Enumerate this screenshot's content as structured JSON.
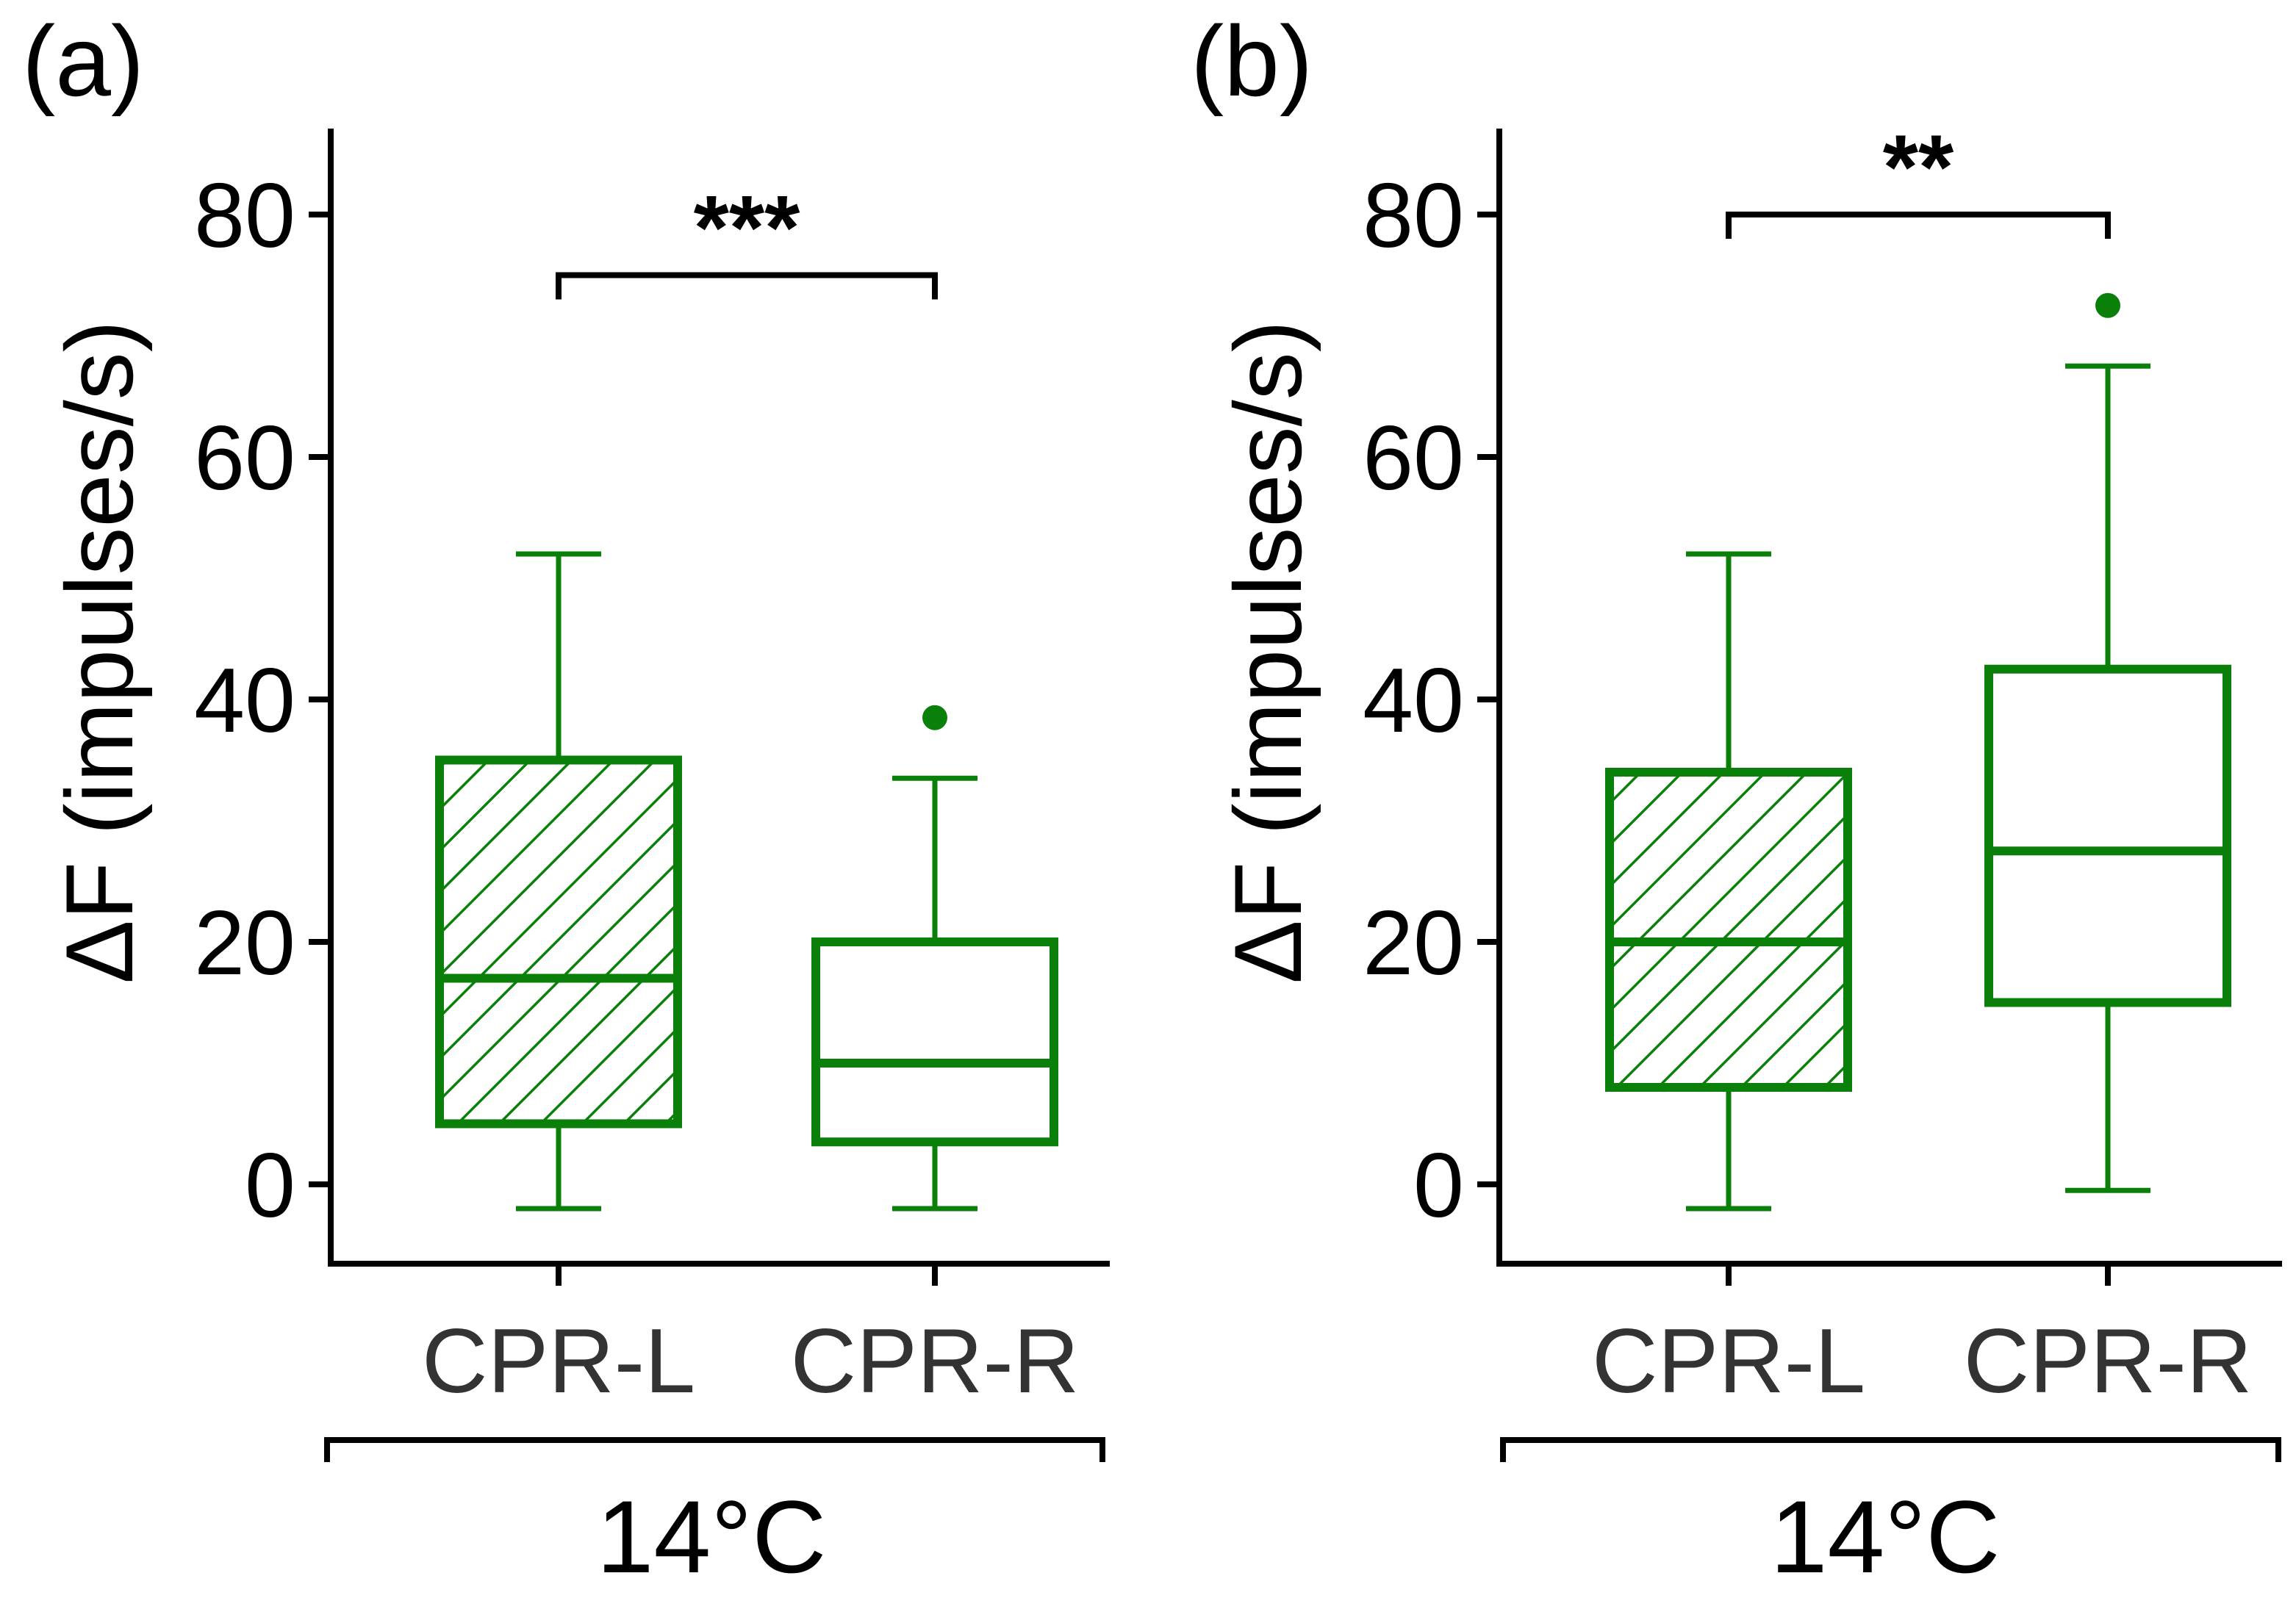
{
  "chart_data": [
    {
      "type": "box",
      "panel_label": "(a)",
      "ylabel": "ΔF  (impulses/s)",
      "ylim": [
        -6.5,
        87
      ],
      "yticks": [
        0,
        20,
        40,
        60,
        80
      ],
      "ytick_labels": [
        "0",
        "20",
        "40",
        "60",
        "80"
      ],
      "categories": [
        "CPR-L",
        "CPR-R"
      ],
      "group_label": "14°C",
      "color": "#0a800a",
      "boxes": [
        {
          "name": "CPR-L",
          "whisker_low": -2,
          "q1": 5,
          "median": 17,
          "q3": 35,
          "whisker_high": 52,
          "outliers": [],
          "hatched": true
        },
        {
          "name": "CPR-R",
          "whisker_low": -2,
          "q1": 3.5,
          "median": 10,
          "q3": 20,
          "whisker_high": 33.5,
          "outliers": [
            38.5
          ],
          "hatched": false
        }
      ],
      "significance": {
        "label": "***",
        "from": 0,
        "to": 1,
        "y": 75,
        "tick_down_to": 73
      }
    },
    {
      "type": "box",
      "panel_label": "(b)",
      "ylabel": "ΔF  (impulses/s)",
      "ylim": [
        -6.5,
        87
      ],
      "yticks": [
        0,
        20,
        40,
        60,
        80
      ],
      "ytick_labels": [
        "0",
        "20",
        "40",
        "60",
        "80"
      ],
      "categories": [
        "CPR-L",
        "CPR-R"
      ],
      "group_label": "14°C",
      "color": "#0a800a",
      "boxes": [
        {
          "name": "CPR-L",
          "whisker_low": -2,
          "q1": 8,
          "median": 20,
          "q3": 34,
          "whisker_high": 52,
          "outliers": [],
          "hatched": true
        },
        {
          "name": "CPR-R",
          "whisker_low": -0.5,
          "q1": 15,
          "median": 27.5,
          "q3": 42.5,
          "whisker_high": 67.5,
          "outliers": [
            72.5
          ],
          "hatched": false
        }
      ],
      "significance": {
        "label": "**",
        "from": 0,
        "to": 1,
        "y": 80,
        "tick_down_to": 78
      }
    }
  ]
}
